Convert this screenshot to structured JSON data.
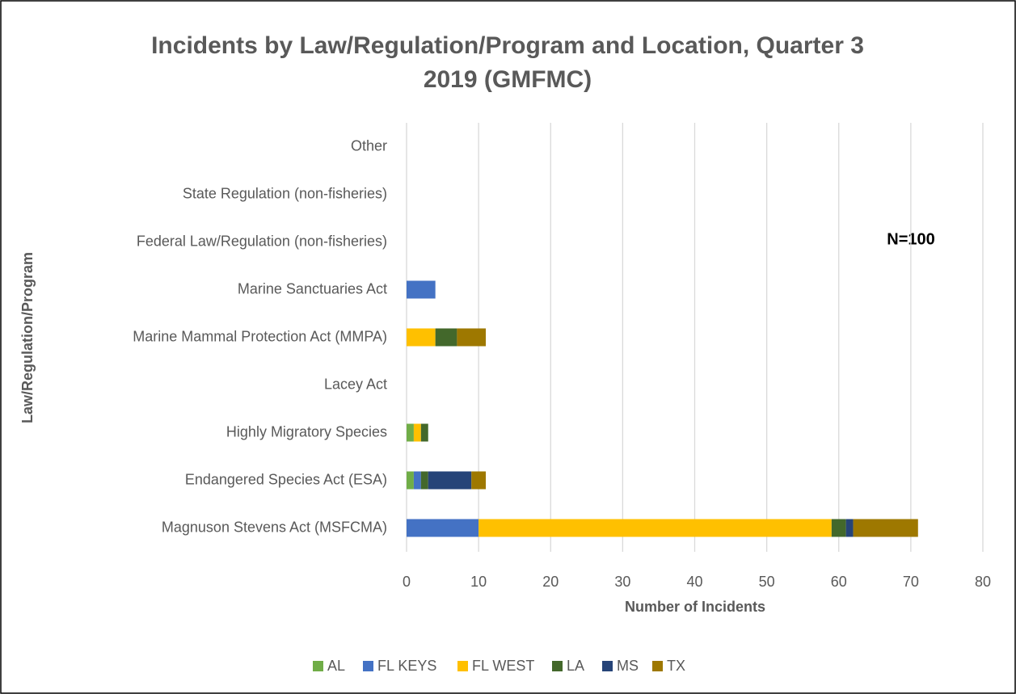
{
  "chart_data": {
    "type": "bar",
    "orientation": "horizontal",
    "stacked": true,
    "title_lines": [
      "Incidents by Law/Regulation/Program and Location, Quarter 3",
      "2019 (GMFMC)"
    ],
    "x_label": "Number of Incidents",
    "y_label": "Law/Regulation/Program",
    "annotation": "N=100",
    "categories": [
      "Magnuson Stevens Act (MSFCMA)",
      "Endangered Species Act (ESA)",
      "Highly Migratory Species",
      "Lacey Act",
      "Marine Mammal Protection Act (MMPA)",
      "Marine Sanctuaries Act",
      "Federal Law/Regulation (non-fisheries)",
      "State Regulation (non-fisheries)",
      "Other"
    ],
    "series": [
      {
        "name": "AL",
        "color": "#70ad47",
        "values": [
          0,
          1,
          1,
          0,
          0,
          0,
          0,
          0,
          0
        ]
      },
      {
        "name": "FL KEYS",
        "color": "#4472c4",
        "values": [
          10,
          1,
          0,
          0,
          0,
          4,
          0,
          0,
          0
        ]
      },
      {
        "name": "FL WEST",
        "color": "#ffc000",
        "values": [
          49,
          0,
          1,
          0,
          4,
          0,
          0,
          0,
          0
        ]
      },
      {
        "name": "LA",
        "color": "#43682b",
        "values": [
          2,
          1,
          1,
          0,
          3,
          0,
          0,
          0,
          0
        ]
      },
      {
        "name": "MS",
        "color": "#264478",
        "values": [
          1,
          6,
          0,
          0,
          0,
          0,
          0,
          0,
          0
        ]
      },
      {
        "name": "TX",
        "color": "#9e7800",
        "values": [
          9,
          2,
          0,
          0,
          4,
          0,
          0,
          0,
          0
        ]
      }
    ],
    "xlim": [
      0,
      80
    ],
    "xticks": [
      0,
      10,
      20,
      30,
      40,
      50,
      60,
      70,
      80
    ],
    "grid": true,
    "legend": "bottom"
  }
}
